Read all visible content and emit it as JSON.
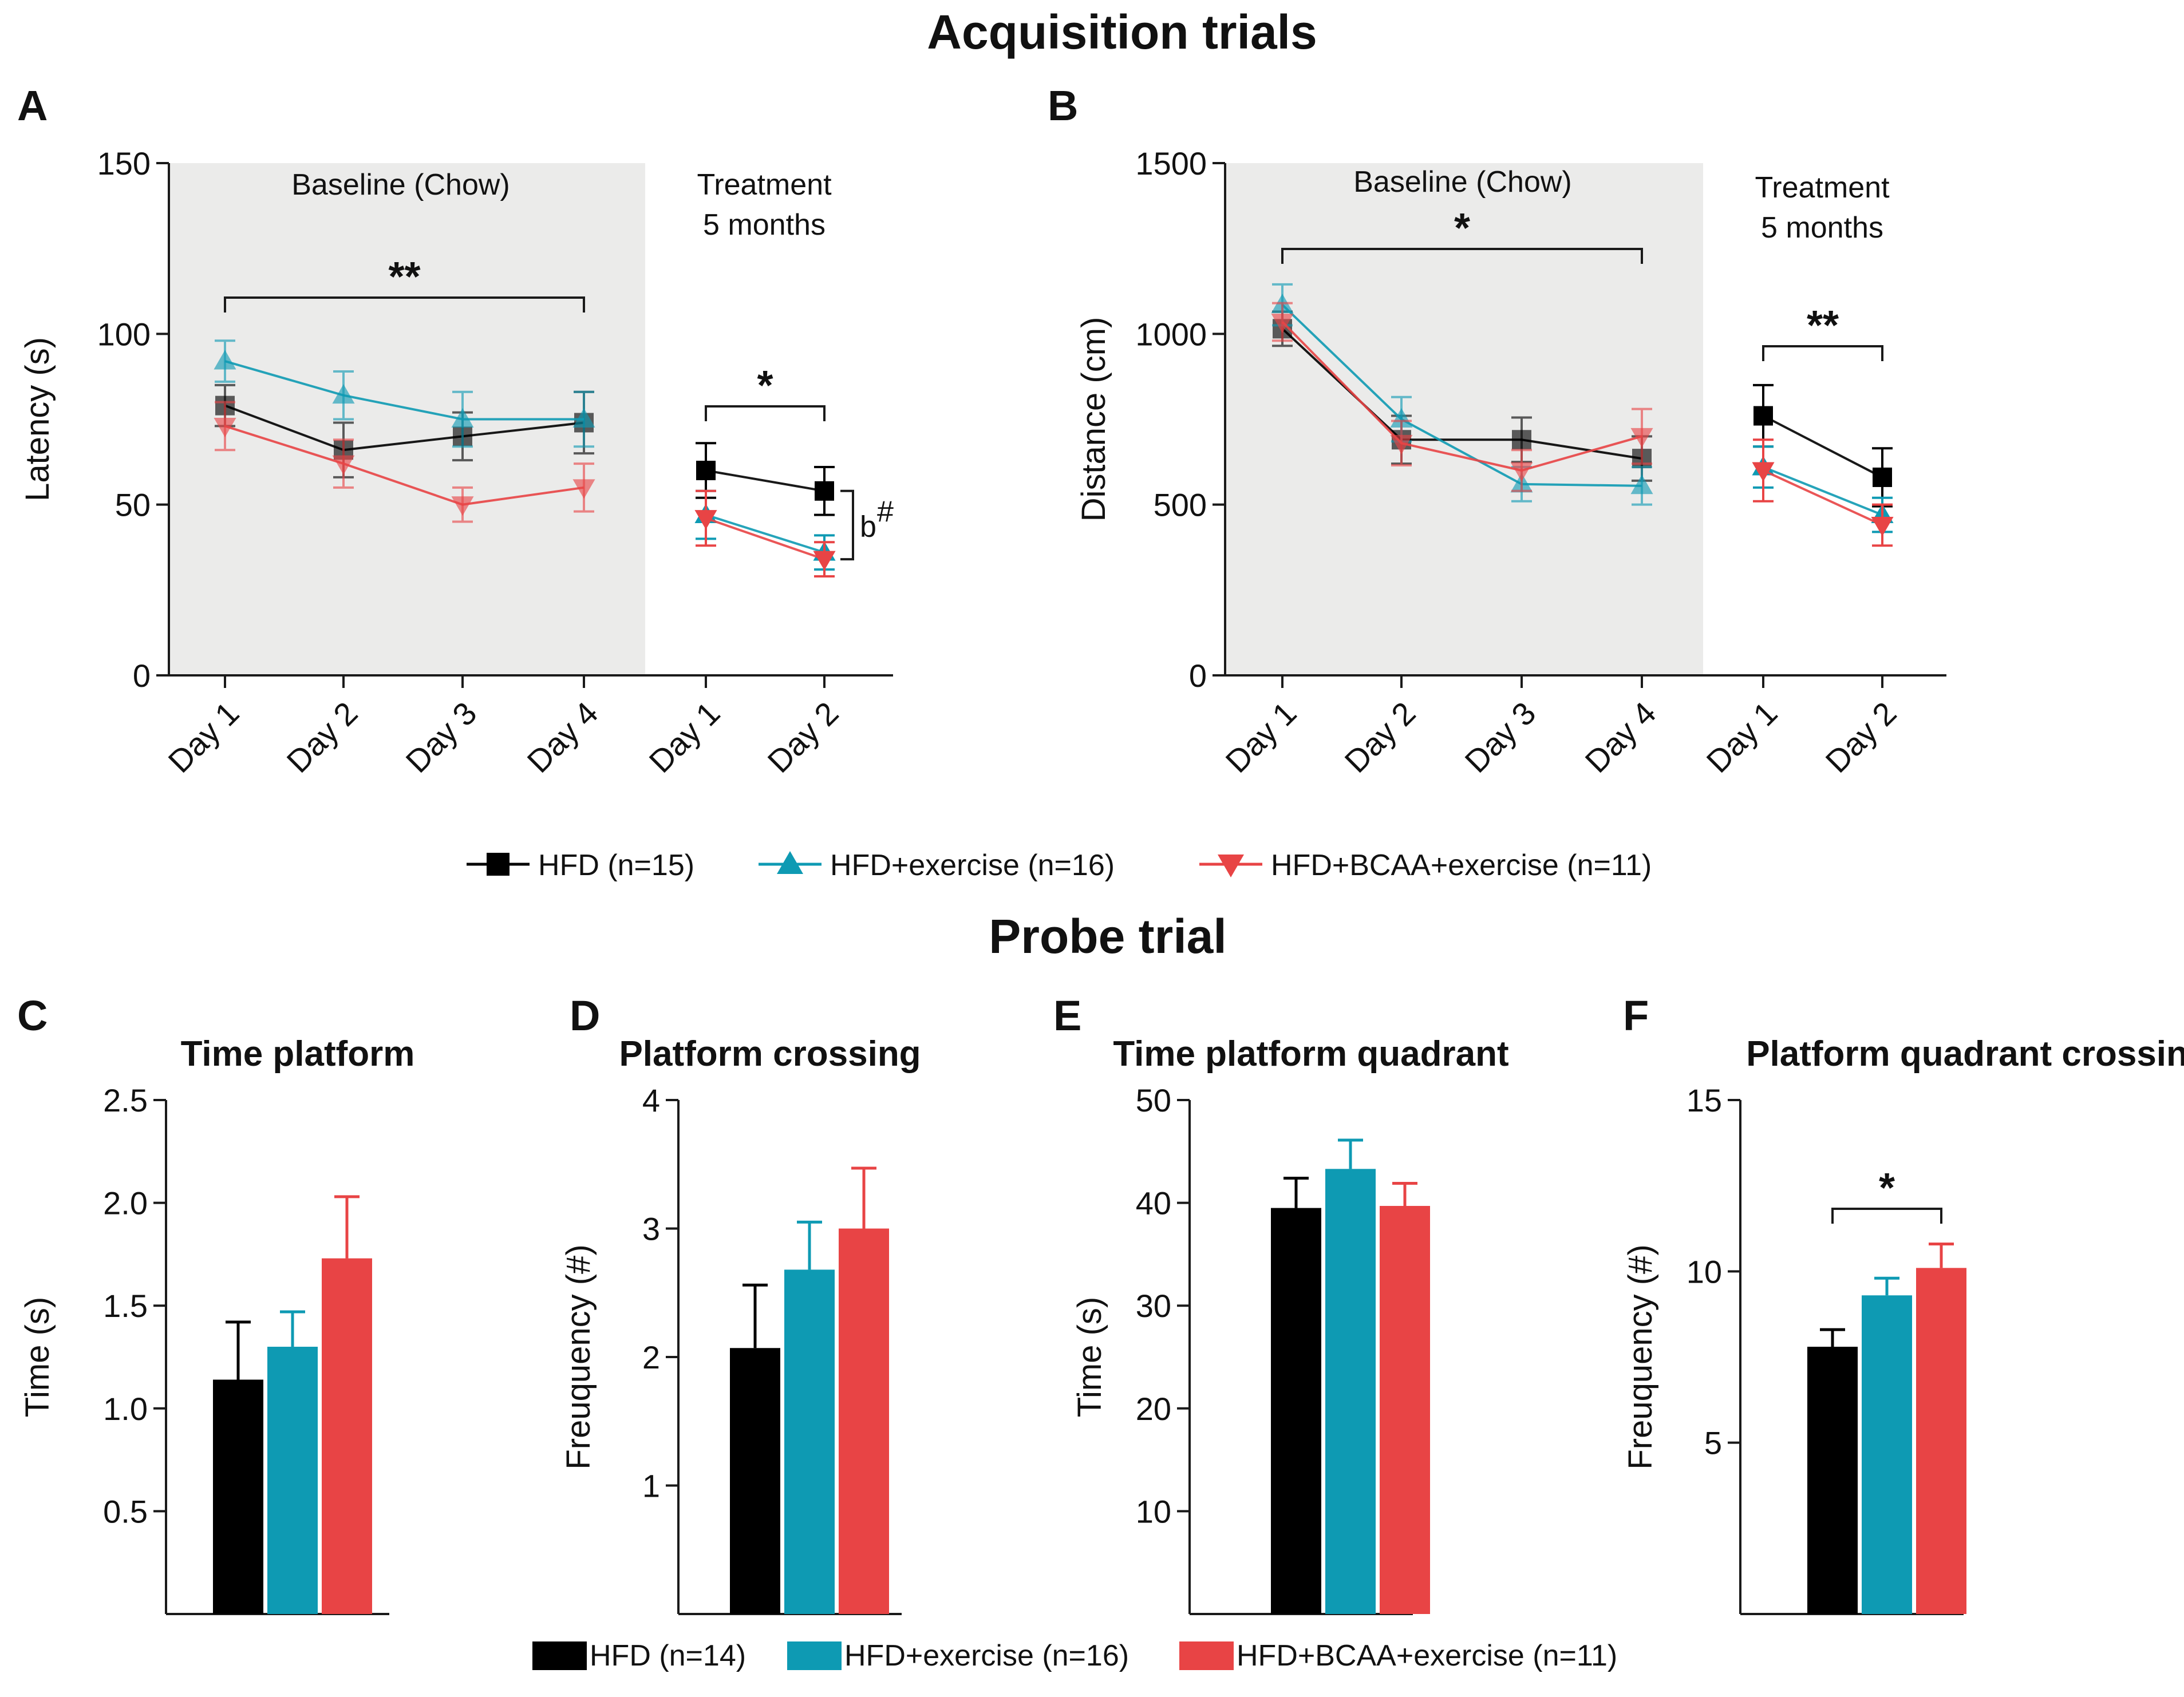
{
  "figure": {
    "top_title": "Acquisition trials",
    "probe_title": "Probe trial"
  },
  "colors": {
    "HFD": "#000000",
    "HFD+exercise": "#0e9ab3",
    "HFD+BCAA+exercise": "#e84445",
    "baseline_shade": "#ebebea"
  },
  "chart_data": [
    {
      "id": "A",
      "type": "line",
      "panel_label": "A",
      "ylabel": "Latency (s)",
      "ylim": [
        0,
        150
      ],
      "yticks": [
        0,
        50,
        100,
        150
      ],
      "categories": [
        "Day 1",
        "Day 2",
        "Day 3",
        "Day 4",
        "Day 1",
        "Day 2"
      ],
      "baseline_label": "Baseline (Chow)",
      "treatment_label_line1": "Treatment",
      "treatment_label_line2": "5 months",
      "series": [
        {
          "name": "HFD",
          "marker": "square",
          "values": [
            79,
            66,
            70,
            74,
            60,
            54
          ],
          "errors": [
            6,
            8,
            7,
            9,
            8,
            7
          ]
        },
        {
          "name": "HFD+exercise",
          "marker": "triangle-up",
          "values": [
            92,
            82,
            75,
            75,
            47,
            36
          ],
          "errors": [
            6,
            7,
            8,
            8,
            7,
            5
          ]
        },
        {
          "name": "HFD+BCAA+exercise",
          "marker": "triangle-down",
          "values": [
            73,
            62,
            50,
            55,
            46,
            34
          ],
          "errors": [
            7,
            7,
            5,
            7,
            8,
            5
          ]
        }
      ],
      "sig_baseline": "**",
      "sig_treatment": "*",
      "annotation": "b",
      "annotation_sup": "#"
    },
    {
      "id": "B",
      "type": "line",
      "panel_label": "B",
      "ylabel": "Distance (cm)",
      "ylim": [
        0,
        1500
      ],
      "yticks": [
        0,
        500,
        1000,
        1500
      ],
      "categories": [
        "Day 1",
        "Day 2",
        "Day 3",
        "Day 4",
        "Day 1",
        "Day 2"
      ],
      "baseline_label": "Baseline (Chow)",
      "treatment_label_line1": "Treatment",
      "treatment_label_line2": "5 months",
      "series": [
        {
          "name": "HFD",
          "marker": "square",
          "values": [
            1015,
            690,
            690,
            635,
            760,
            580
          ],
          "errors": [
            50,
            70,
            65,
            65,
            90,
            85
          ]
        },
        {
          "name": "HFD+exercise",
          "marker": "triangle-up",
          "values": [
            1085,
            750,
            560,
            555,
            610,
            470
          ],
          "errors": [
            60,
            65,
            50,
            55,
            60,
            50
          ]
        },
        {
          "name": "HFD+BCAA+exercise",
          "marker": "triangle-down",
          "values": [
            1035,
            680,
            600,
            700,
            600,
            440
          ],
          "errors": [
            55,
            65,
            60,
            80,
            90,
            60
          ]
        }
      ],
      "sig_baseline": "*",
      "sig_treatment": "**"
    },
    {
      "id": "C",
      "type": "bar",
      "panel_label": "C",
      "title": "Time platform",
      "ylabel": "Time (s)",
      "ylim": [
        0,
        2.5
      ],
      "yticks": [
        "0.5",
        "1.0",
        "1.5",
        "2.0",
        "2.5"
      ],
      "categories": [
        "HFD",
        "HFD+exercise",
        "HFD+BCAA+exercise"
      ],
      "values": [
        1.14,
        1.3,
        1.73
      ],
      "errors": [
        0.28,
        0.17,
        0.3
      ]
    },
    {
      "id": "D",
      "type": "bar",
      "panel_label": "D",
      "title": "Platform crossing",
      "ylabel": "Freuquency (#)",
      "ylim": [
        0,
        4
      ],
      "yticks": [
        "1",
        "2",
        "3",
        "4"
      ],
      "categories": [
        "HFD",
        "HFD+exercise",
        "HFD+BCAA+exercise"
      ],
      "values": [
        2.07,
        2.68,
        3.0
      ],
      "errors": [
        0.49,
        0.37,
        0.47
      ]
    },
    {
      "id": "E",
      "type": "bar",
      "panel_label": "E",
      "title": "Time platform quadrant",
      "ylabel": "Time (s)",
      "ylim": [
        0,
        50
      ],
      "yticks": [
        "10",
        "20",
        "30",
        "40",
        "50"
      ],
      "categories": [
        "HFD",
        "HFD+exercise",
        "HFD+BCAA+exercise"
      ],
      "values": [
        39.5,
        43.3,
        39.7
      ],
      "errors": [
        2.9,
        2.8,
        2.2
      ]
    },
    {
      "id": "F",
      "type": "bar",
      "panel_label": "F",
      "title": "Platform quadrant crossing",
      "ylabel": "Freuquency (#)",
      "ylim": [
        0,
        15
      ],
      "yticks": [
        "5",
        "10",
        "15"
      ],
      "categories": [
        "HFD",
        "HFD+exercise",
        "HFD+BCAA+exercise"
      ],
      "values": [
        7.8,
        9.3,
        10.1
      ],
      "errors": [
        0.5,
        0.5,
        0.7
      ],
      "sig": "*"
    }
  ],
  "legend_lines": [
    {
      "label": "HFD (n=15)",
      "marker": "square",
      "color": "#000000"
    },
    {
      "label": "HFD+exercise (n=16)",
      "marker": "triangle-up",
      "color": "#0e9ab3"
    },
    {
      "label": "HFD+BCAA+exercise (n=11)",
      "marker": "triangle-down",
      "color": "#e84445"
    }
  ],
  "legend_bars": [
    {
      "label": "HFD (n=14)",
      "color": "#000000"
    },
    {
      "label": "HFD+exercise (n=16)",
      "color": "#0e9ab3"
    },
    {
      "label": "HFD+BCAA+exercise (n=11)",
      "color": "#e84445"
    }
  ]
}
